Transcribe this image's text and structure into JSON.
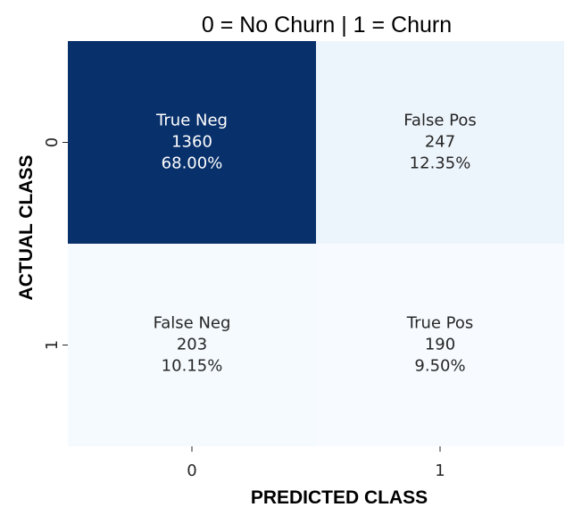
{
  "chart_data": {
    "type": "heatmap",
    "title": "0 = No Churn | 1 = Churn",
    "xlabel": "PREDICTED CLASS",
    "ylabel": "ACTUAL CLASS",
    "x_ticks": [
      "0",
      "1"
    ],
    "y_ticks": [
      "0",
      "1"
    ],
    "cells": [
      [
        {
          "name": "True Neg",
          "count": "1360",
          "percent": "68.00%",
          "value": 1360
        },
        {
          "name": "False Pos",
          "count": "247",
          "percent": "12.35%",
          "value": 247
        }
      ],
      [
        {
          "name": "False Neg",
          "count": "203",
          "percent": "10.15%",
          "value": 203
        },
        {
          "name": "True Pos",
          "count": "190",
          "percent": "9.50%",
          "value": 190
        }
      ]
    ],
    "colormap": "Blues",
    "color_low": "#f7fbff",
    "color_high": "#08306b",
    "colorbar": false
  }
}
